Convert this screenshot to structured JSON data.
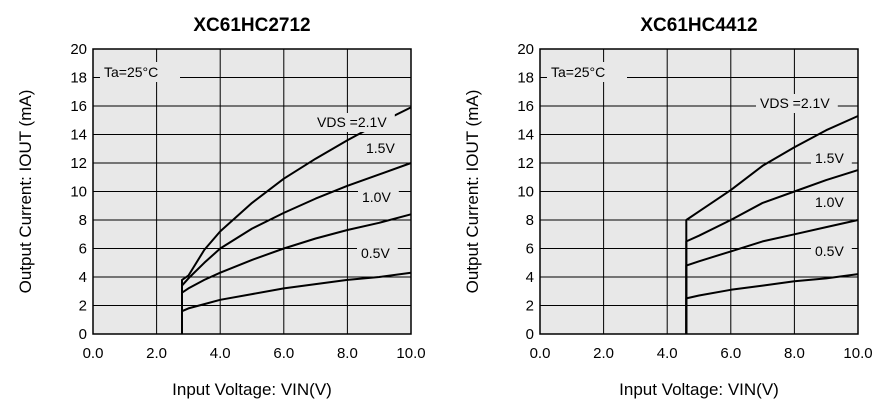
{
  "chart_data": [
    {
      "type": "line",
      "title": "XC61HC2712",
      "xlabel": "Input Voltage: VIN(V)",
      "ylabel": "Output Current: IOUT (mA)",
      "xlim": [
        0,
        10
      ],
      "ylim": [
        0,
        20
      ],
      "xticks": [
        "0.0",
        "2.0",
        "4.0",
        "6.0",
        "8.0",
        "10.0"
      ],
      "yticks": [
        "0",
        "2",
        "4",
        "6",
        "8",
        "10",
        "12",
        "14",
        "16",
        "18",
        "20"
      ],
      "grid": true,
      "annotation": "Ta=25°C",
      "series": [
        {
          "name": "VDS =2.1V",
          "points": [
            [
              2.8,
              0
            ],
            [
              2.8,
              3.8
            ],
            [
              3.0,
              4.1
            ],
            [
              3.5,
              5.9
            ],
            [
              4.0,
              7.2
            ],
            [
              5.0,
              9.2
            ],
            [
              6.0,
              10.9
            ],
            [
              7.0,
              12.3
            ],
            [
              8.0,
              13.6
            ],
            [
              9.0,
              14.8
            ],
            [
              10.0,
              15.9
            ]
          ]
        },
        {
          "name": "1.5V",
          "points": [
            [
              2.8,
              0
            ],
            [
              2.8,
              3.4
            ],
            [
              3.0,
              3.9
            ],
            [
              3.5,
              5.0
            ],
            [
              4.0,
              6.0
            ],
            [
              5.0,
              7.4
            ],
            [
              6.0,
              8.5
            ],
            [
              7.0,
              9.5
            ],
            [
              8.0,
              10.4
            ],
            [
              9.0,
              11.2
            ],
            [
              10.0,
              12.0
            ]
          ]
        },
        {
          "name": "1.0V",
          "points": [
            [
              2.8,
              0
            ],
            [
              2.8,
              2.9
            ],
            [
              3.0,
              3.2
            ],
            [
              3.5,
              3.8
            ],
            [
              4.0,
              4.3
            ],
            [
              5.0,
              5.2
            ],
            [
              6.0,
              6.0
            ],
            [
              7.0,
              6.7
            ],
            [
              8.0,
              7.3
            ],
            [
              9.0,
              7.8
            ],
            [
              10.0,
              8.4
            ]
          ]
        },
        {
          "name": "0.5V",
          "points": [
            [
              2.8,
              0
            ],
            [
              2.8,
              1.6
            ],
            [
              3.0,
              1.8
            ],
            [
              3.5,
              2.1
            ],
            [
              4.0,
              2.4
            ],
            [
              5.0,
              2.8
            ],
            [
              6.0,
              3.2
            ],
            [
              7.0,
              3.5
            ],
            [
              8.0,
              3.8
            ],
            [
              9.0,
              4.0
            ],
            [
              10.0,
              4.3
            ]
          ]
        }
      ]
    },
    {
      "type": "line",
      "title": "XC61HC4412",
      "xlabel": "Input Voltage: VIN(V)",
      "ylabel": "Output Current: IOUT (mA)",
      "xlim": [
        0,
        10
      ],
      "ylim": [
        0,
        20
      ],
      "xticks": [
        "0.0",
        "2.0",
        "4.0",
        "6.0",
        "8.0",
        "10.0"
      ],
      "yticks": [
        "0",
        "2",
        "4",
        "6",
        "8",
        "10",
        "12",
        "14",
        "16",
        "18",
        "20"
      ],
      "grid": true,
      "annotation": "Ta=25°C",
      "series": [
        {
          "name": "VDS =2.1V",
          "points": [
            [
              4.6,
              0
            ],
            [
              4.6,
              8.0
            ],
            [
              5.0,
              8.6
            ],
            [
              6.0,
              10.1
            ],
            [
              7.0,
              11.8
            ],
            [
              8.0,
              13.1
            ],
            [
              9.0,
              14.3
            ],
            [
              10.0,
              15.3
            ]
          ]
        },
        {
          "name": "1.5V",
          "points": [
            [
              4.6,
              0
            ],
            [
              4.6,
              6.5
            ],
            [
              5.0,
              6.9
            ],
            [
              6.0,
              8.0
            ],
            [
              7.0,
              9.2
            ],
            [
              8.0,
              10.0
            ],
            [
              9.0,
              10.8
            ],
            [
              10.0,
              11.5
            ]
          ]
        },
        {
          "name": "1.0V",
          "points": [
            [
              4.6,
              0
            ],
            [
              4.6,
              4.8
            ],
            [
              5.0,
              5.1
            ],
            [
              6.0,
              5.8
            ],
            [
              7.0,
              6.5
            ],
            [
              8.0,
              7.0
            ],
            [
              9.0,
              7.5
            ],
            [
              10.0,
              8.0
            ]
          ]
        },
        {
          "name": "0.5V",
          "points": [
            [
              4.6,
              0
            ],
            [
              4.6,
              2.5
            ],
            [
              5.0,
              2.7
            ],
            [
              6.0,
              3.1
            ],
            [
              7.0,
              3.4
            ],
            [
              8.0,
              3.7
            ],
            [
              9.0,
              3.9
            ],
            [
              10.0,
              4.2
            ]
          ]
        }
      ]
    }
  ]
}
